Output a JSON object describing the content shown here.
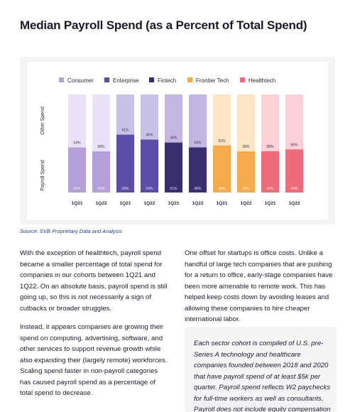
{
  "page": {
    "title": "Median Payroll Spend (as a Percent of Total Spend)",
    "source": "Source: SVB Proprietary Data and Analysis"
  },
  "chart_data": {
    "type": "bar",
    "stacked": true,
    "title": "",
    "xlabel": "",
    "ylabel": "",
    "row_labels": {
      "top": "Other Spend",
      "bottom": "Payroll Spend"
    },
    "legend": [
      "Consumer",
      "Enterprise",
      "Fintech",
      "Frontier Tech",
      "Healthtech"
    ],
    "legend_position": "top",
    "groups": [
      {
        "name": "Consumer",
        "colors": {
          "payroll": "#b59fd8",
          "other": "#e9e1f5"
        },
        "bars": [
          {
            "category": "1Q21",
            "payroll": 46,
            "other": 54
          },
          {
            "category": "1Q22",
            "payroll": 42,
            "other": 58
          }
        ]
      },
      {
        "name": "Enterprise",
        "colors": {
          "payroll": "#5c4ea6",
          "other": "#c9c0e6"
        },
        "bars": [
          {
            "category": "1Q21",
            "payroll": 59,
            "other": 41
          },
          {
            "category": "1Q22",
            "payroll": 54,
            "other": 46
          }
        ]
      },
      {
        "name": "Fintech",
        "colors": {
          "payroll": "#3a2e6e",
          "other": "#c3b7e1"
        },
        "bars": [
          {
            "category": "1Q21",
            "payroll": 51,
            "other": 49
          },
          {
            "category": "1Q22",
            "payroll": 46,
            "other": 54
          }
        ]
      },
      {
        "name": "Frontier Tech",
        "colors": {
          "payroll": "#f3ab4c",
          "other": "#fde4c4"
        },
        "bars": [
          {
            "category": "1Q21",
            "payroll": 48,
            "other": 52
          },
          {
            "category": "1Q22",
            "payroll": 42,
            "other": 58
          }
        ]
      },
      {
        "name": "Healthtech",
        "colors": {
          "payroll": "#ee6b7b",
          "other": "#fbd0d6"
        },
        "bars": [
          {
            "category": "1Q21",
            "payroll": 42,
            "other": 58
          },
          {
            "category": "1Q22",
            "payroll": 44,
            "other": 56
          }
        ]
      }
    ],
    "ylim": [
      0,
      100
    ],
    "grid": false
  },
  "text": {
    "left": [
      "With the exception of healthtech, payroll spend became a smaller percentage of total spend for companies in our cohorts between 1Q21 and 1Q22. On an absolute basis, payroll spend is still going up, so this is not necessarily a sign of cutbacks or broader struggles.",
      "Instead, it appears companies are growing their spend on computing, advertising, software, and other services to support revenue growth while also expanding their (largely remote) workforces. Scaling spend faster in non-payroll categories has caused payroll spend as a percentage of total spend to decrease."
    ],
    "right": [
      "One offset for startups is office costs. Unlike a handful of large tech companies that are pushing for a return to office, early-stage companies have been more amenable to remote work. This has helped keep costs down by avoiding leases and allowing these companies to hire cheaper international labor."
    ],
    "note": "Each sector cohort is compiled of U.S. pre-Series A technology and healthcare companies founded between 2018 and 2020 that have payroll spend of at least $5k per quarter. Payroll spend reflects W2 paychecks for full-time workers as well as consultants. Payroll does not include equity compensation"
  }
}
